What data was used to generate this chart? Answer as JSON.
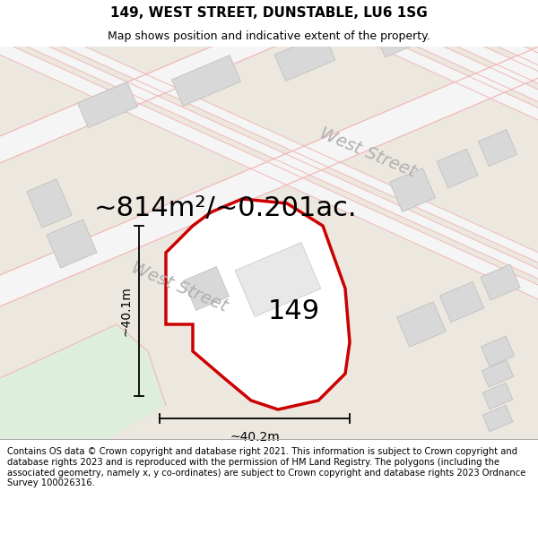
{
  "title": "149, WEST STREET, DUNSTABLE, LU6 1SG",
  "subtitle": "Map shows position and indicative extent of the property.",
  "footer": "Contains OS data © Crown copyright and database right 2021. This information is subject to Crown copyright and database rights 2023 and is reproduced with the permission of HM Land Registry. The polygons (including the associated geometry, namely x, y co-ordinates) are subject to Crown copyright and database rights 2023 Ordnance Survey 100026316.",
  "area_label": "~814m²/~0.201ac.",
  "number_label": "149",
  "dim_horizontal": "~40.2m",
  "dim_vertical": "~40.1m",
  "street_label_lower": "West Street",
  "street_label_upper": "West Street",
  "bg_color": "#f5f5f5",
  "map_bg": "#ece8e0",
  "road_color": "#f5f5f5",
  "building_fill": "#d8d8d8",
  "building_edge": "#c0c0c0",
  "plot_fill": "#ffffff",
  "plot_edge": "#cc0000",
  "road_line_color": "#f0b8b8",
  "green_color": "#ddeedd",
  "title_fontsize": 11,
  "subtitle_fontsize": 9,
  "footer_fontsize": 7.2,
  "area_fontsize": 22,
  "number_fontsize": 22,
  "dim_fontsize": 10,
  "street_lower_fontsize": 14,
  "street_upper_fontsize": 14
}
